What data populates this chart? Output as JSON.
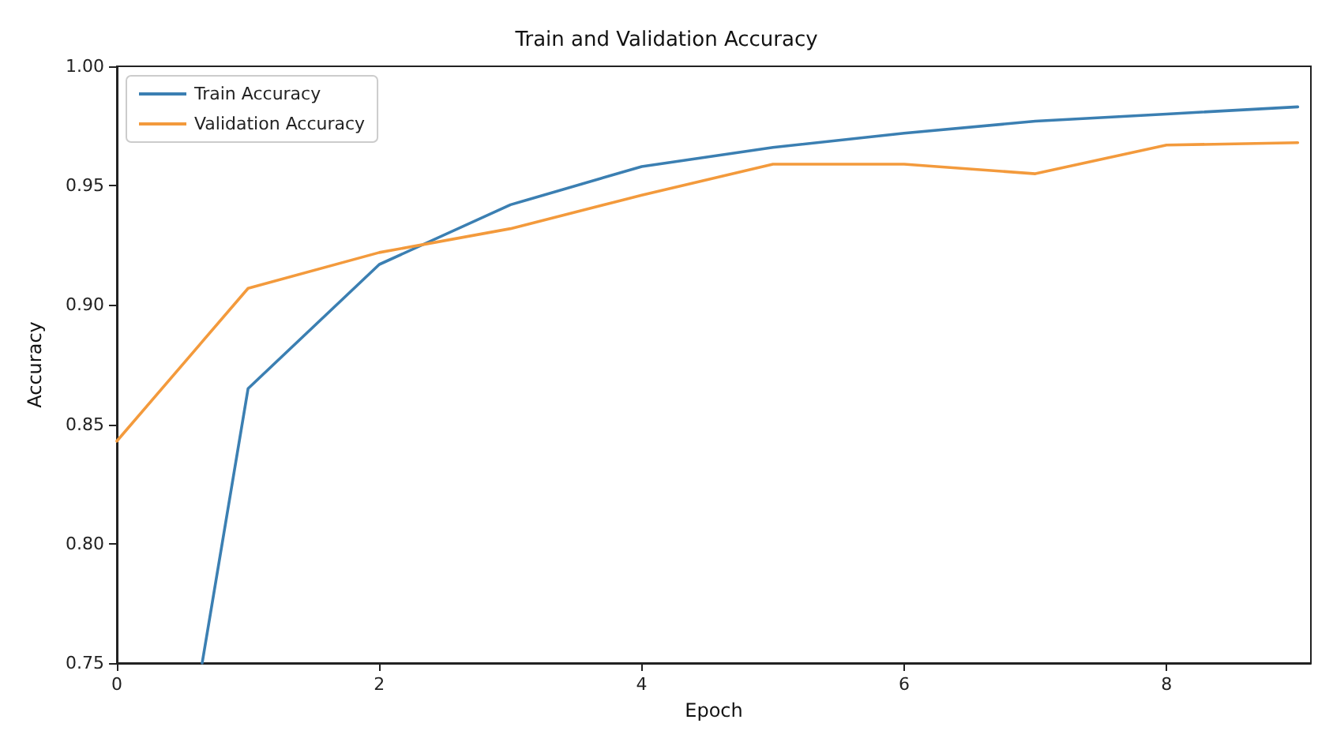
{
  "chart_data": {
    "type": "line",
    "title": "Train and Validation Accuracy",
    "xlabel": "Epoch",
    "ylabel": "Accuracy",
    "x": [
      0,
      1,
      2,
      3,
      4,
      5,
      6,
      7,
      8,
      9
    ],
    "series": [
      {
        "name": "Train Accuracy",
        "color": "#3b7fb2",
        "x": [
          0.65,
          1,
          2,
          3,
          4,
          5,
          6,
          7,
          8,
          9
        ],
        "values": [
          0.75,
          0.865,
          0.917,
          0.942,
          0.958,
          0.966,
          0.972,
          0.977,
          0.98,
          0.983
        ]
      },
      {
        "name": "Validation Accuracy",
        "color": "#f39a3c",
        "values": [
          0.843,
          0.907,
          0.922,
          0.932,
          0.946,
          0.959,
          0.959,
          0.955,
          0.967,
          0.968
        ]
      }
    ],
    "xlim": [
      0,
      9.1
    ],
    "xticks": [
      0,
      2,
      4,
      6,
      8
    ],
    "ylim": [
      0.75,
      1.0
    ],
    "yticks": [
      0.75,
      {
        "value": 0.8,
        "label": "0.80"
      },
      0.85,
      {
        "value": 0.9,
        "label": "0.90"
      },
      0.95,
      {
        "value": 1.0,
        "label": "1.00"
      }
    ],
    "grid": false,
    "legend": "top left",
    "marker": "none",
    "line_style": "solid"
  }
}
